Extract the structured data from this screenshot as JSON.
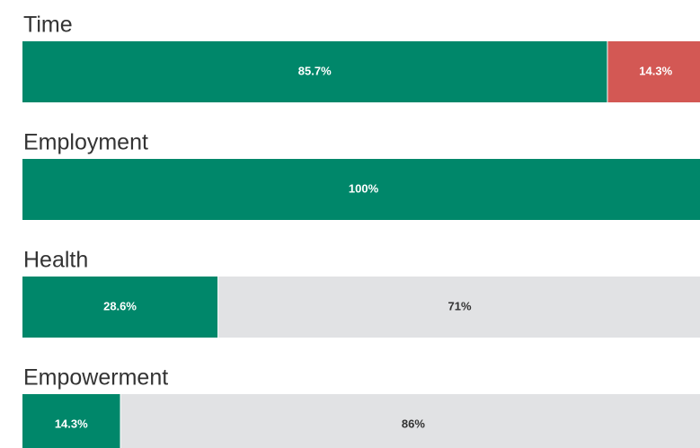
{
  "chart_data": {
    "type": "stacked-bar-horizontal",
    "categories": [
      "Time",
      "Employment",
      "Health",
      "Empowerment"
    ],
    "xlim": [
      0,
      100
    ],
    "series": [
      {
        "color": "#00876a",
        "values": [
          85.7,
          100,
          28.6,
          14.3
        ],
        "value_labels": [
          "85.7%",
          "100%",
          "28.6%",
          "14.3%"
        ]
      },
      {
        "color": "#d35854",
        "values": [
          14.3,
          null,
          null,
          null
        ],
        "value_labels": [
          "14.3%",
          null,
          null,
          null
        ]
      },
      {
        "color": "#e1e2e4",
        "values": [
          null,
          null,
          71,
          86
        ],
        "value_labels": [
          null,
          null,
          "71%",
          "86%"
        ]
      }
    ]
  }
}
